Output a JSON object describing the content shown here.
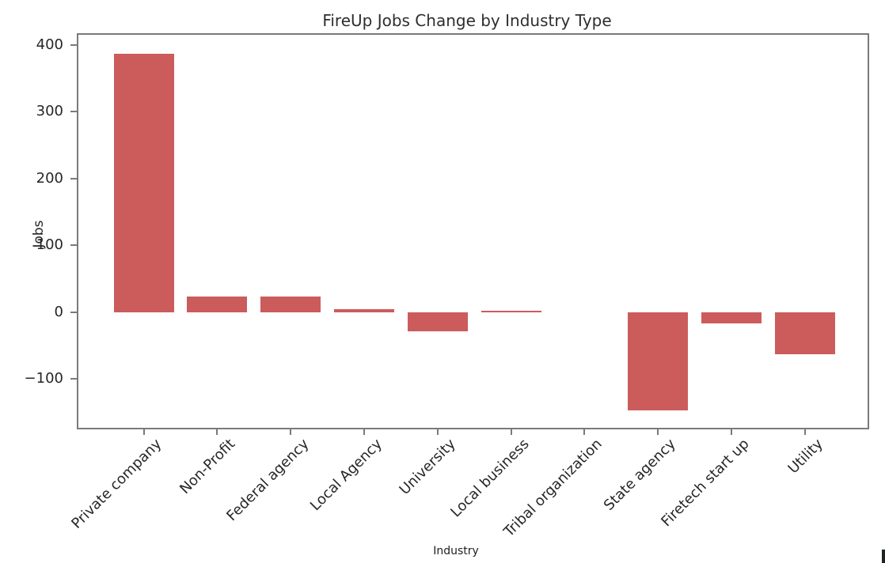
{
  "chart_data": {
    "type": "bar",
    "title": "FireUp Jobs Change by Industry Type",
    "xlabel": "Industry",
    "ylabel": "Jobs",
    "categories": [
      "Private company",
      "Non-Profit",
      "Federal agency",
      "Local Agency",
      "University",
      "Local business",
      "Tribal organization",
      "State agency",
      "Firetech start up",
      "Utility"
    ],
    "values": [
      387,
      23,
      23,
      5,
      -29,
      2,
      0,
      -147,
      -17,
      -63
    ],
    "yticks": [
      400,
      300,
      200,
      100,
      0,
      -100
    ],
    "ylim": [
      -173,
      415
    ],
    "bar_color": "#cc5c5c",
    "grid": false,
    "legend_position": "none",
    "xtick_rotation_deg": 45
  }
}
